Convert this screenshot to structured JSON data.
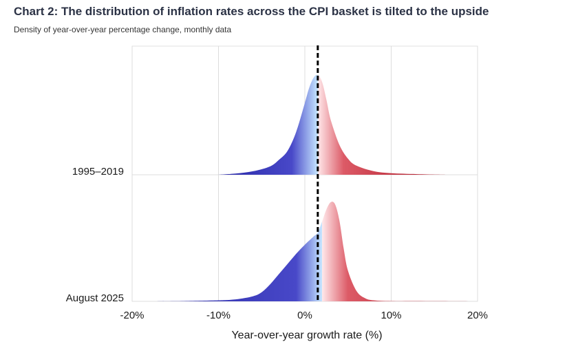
{
  "title": "Chart 2: The distribution of inflation rates across the CPI basket is tilted to the upside",
  "subtitle": "Density of year-over-year percentage change, monthly data",
  "chart_data": {
    "type": "ridgeline-density",
    "xlabel": "Year-over-year growth rate (%)",
    "xlim": [
      -20,
      20
    ],
    "x_ticks": [
      -20,
      -10,
      0,
      10,
      20
    ],
    "x_tick_labels": [
      "-20%",
      "-10%",
      "0%",
      "10%",
      "20%"
    ],
    "grid": true,
    "reference_line": {
      "x": 1.5,
      "style": "dashed",
      "color": "#000000"
    },
    "colors": {
      "below_low": "#2a2aa8",
      "below_high": "#c6e6ff",
      "above_low": "#ffe8ea",
      "above_high": "#a81020"
    },
    "series": [
      {
        "name": "1995–2019",
        "color_split": 1.5,
        "x": [
          -10,
          -8,
          -6,
          -4,
          -3,
          -2,
          -1,
          0,
          0.5,
          1,
          1.5,
          2,
          2.5,
          3,
          4,
          5,
          6,
          8,
          10,
          13,
          16.5
        ],
        "density": [
          0,
          0.012,
          0.035,
          0.085,
          0.15,
          0.24,
          0.43,
          0.72,
          0.87,
          0.97,
          1.0,
          0.93,
          0.75,
          0.55,
          0.3,
          0.16,
          0.09,
          0.035,
          0.015,
          0.006,
          0
        ]
      },
      {
        "name": "August 2025",
        "color_split": 2.0,
        "x": [
          -18,
          -14,
          -10,
          -8,
          -6,
          -5,
          -4,
          -3,
          -2,
          -1,
          0,
          1,
          1.5,
          2,
          2.5,
          3,
          3.5,
          4,
          4.5,
          5,
          6,
          7,
          8,
          10,
          14,
          20
        ],
        "density": [
          0,
          0.003,
          0.01,
          0.02,
          0.05,
          0.09,
          0.17,
          0.27,
          0.37,
          0.47,
          0.56,
          0.64,
          0.68,
          0.79,
          0.91,
          0.98,
          0.96,
          0.8,
          0.52,
          0.3,
          0.1,
          0.03,
          0.01,
          0.003,
          0.002,
          0
        ]
      }
    ]
  }
}
